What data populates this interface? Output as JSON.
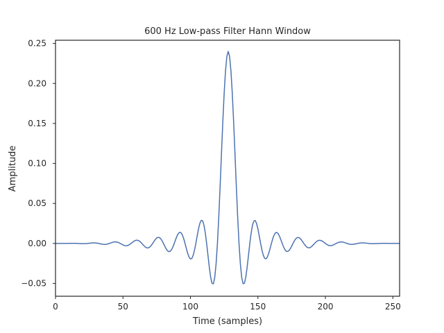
{
  "chart_data": {
    "type": "line",
    "title": "600 Hz Low-pass Filter Hann Window",
    "xlabel": "Time (samples)",
    "ylabel": "Amplitude",
    "xlim": [
      0,
      255
    ],
    "ylim": [
      -0.066,
      0.254
    ],
    "xticks": [
      0,
      50,
      100,
      150,
      200,
      250
    ],
    "xtick_labels": [
      "0",
      "50",
      "100",
      "150",
      "200",
      "250"
    ],
    "yticks": [
      -0.05,
      0.0,
      0.05,
      0.1,
      0.15,
      0.2,
      0.25
    ],
    "ytick_labels": [
      "−0.05",
      "0.00",
      "0.05",
      "0.10",
      "0.15",
      "0.20",
      "0.25"
    ],
    "grid": false,
    "series": [
      {
        "color": "#4c72b0",
        "description": "Windowed-sinc low-pass impulse response, 256 taps, centered at sample 128, peak about 0.24",
        "x_start": 0,
        "x_step": 1,
        "n": 256,
        "center": 128,
        "peak": 0.24,
        "main_lobe_half_width": 8
      }
    ]
  }
}
